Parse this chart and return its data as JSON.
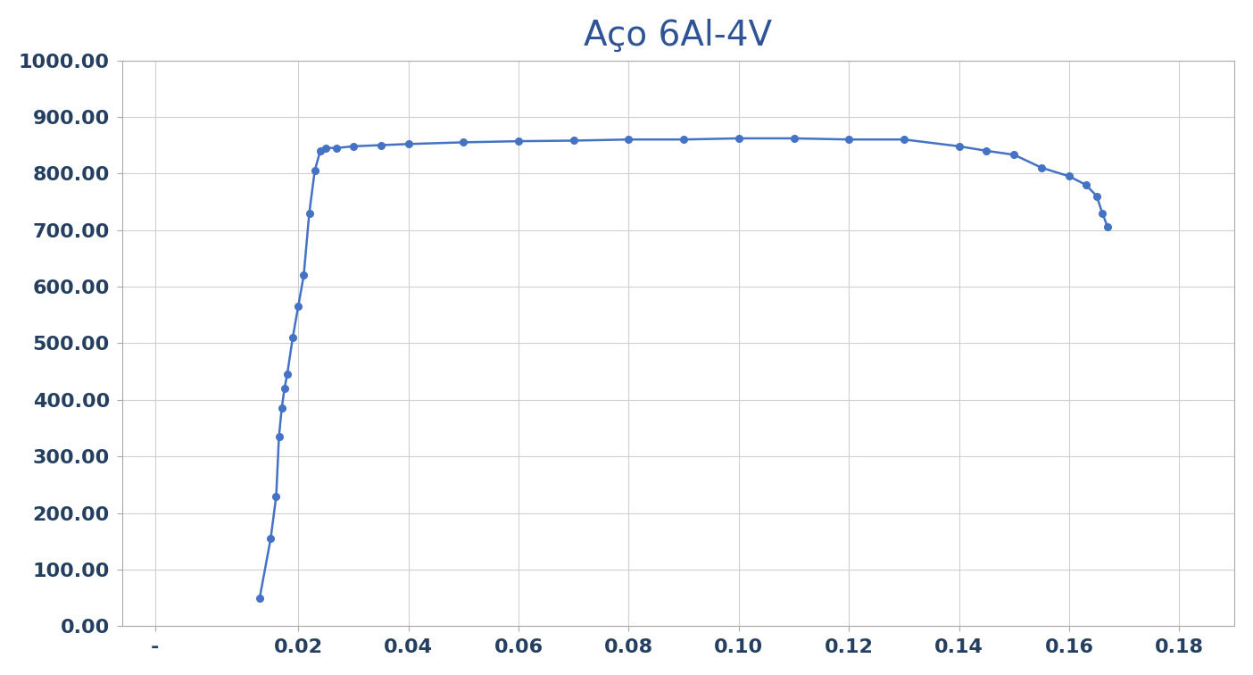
{
  "title": "Aço 6Al-4V",
  "title_fontsize": 28,
  "title_color": "#2F5496",
  "tick_color": "#243F60",
  "line_color": "#4472C4",
  "marker_color": "#4472C4",
  "background_color": "#ffffff",
  "grid_color": "#D0D0D0",
  "spine_color": "#AAAAAA",
  "xlim": [
    -0.012,
    0.19
  ],
  "ylim": [
    0.0,
    1000.0
  ],
  "x_tick_positions": [
    -0.006,
    0.02,
    0.04,
    0.06,
    0.08,
    0.1,
    0.12,
    0.14,
    0.16,
    0.18
  ],
  "x_tick_labels": [
    "-",
    "0.02",
    "0.04",
    "0.06",
    "0.08",
    "0.10",
    "0.12",
    "0.14",
    "0.16",
    "0.18"
  ],
  "yticks": [
    0.0,
    100.0,
    200.0,
    300.0,
    400.0,
    500.0,
    600.0,
    700.0,
    800.0,
    900.0,
    1000.0
  ],
  "tick_fontsize": 16,
  "x": [
    0.013,
    0.015,
    0.016,
    0.0165,
    0.017,
    0.0175,
    0.018,
    0.019,
    0.02,
    0.021,
    0.022,
    0.023,
    0.024,
    0.025,
    0.027,
    0.03,
    0.035,
    0.04,
    0.05,
    0.06,
    0.07,
    0.08,
    0.09,
    0.1,
    0.11,
    0.12,
    0.13,
    0.14,
    0.145,
    0.15,
    0.155,
    0.16,
    0.163,
    0.165,
    0.166,
    0.167
  ],
  "y": [
    50.0,
    155.0,
    230.0,
    335.0,
    385.0,
    420.0,
    445.0,
    510.0,
    565.0,
    620.0,
    730.0,
    805.0,
    840.0,
    845.0,
    845.0,
    848.0,
    850.0,
    852.0,
    855.0,
    857.0,
    858.0,
    860.0,
    860.0,
    862.0,
    862.0,
    860.0,
    860.0,
    848.0,
    840.0,
    833.0,
    810.0,
    795.0,
    780.0,
    760.0,
    730.0,
    705.0
  ]
}
